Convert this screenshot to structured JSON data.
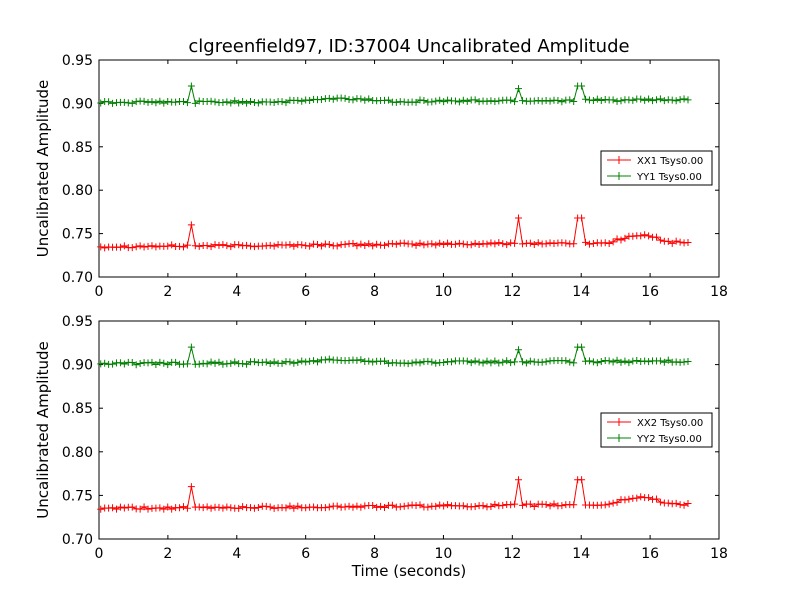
{
  "chart_data": [
    {
      "type": "line",
      "title": "clgreenfield97, ID:37004 Uncalibrated Amplitude",
      "xlabel": "",
      "ylabel": "Uncalibrated Amplitude",
      "xlim": [
        0,
        18
      ],
      "ylim": [
        0.7,
        0.95
      ],
      "xticks": [
        "0",
        "2",
        "4",
        "6",
        "8",
        "10",
        "12",
        "14",
        "16",
        "18"
      ],
      "yticks": [
        "0.70",
        "0.75",
        "0.80",
        "0.85",
        "0.90",
        "0.95"
      ],
      "grid": false,
      "legend_position": "right",
      "series": [
        {
          "name": "XX1 Tsys0.00",
          "color": "#ff0000",
          "base": 0.735,
          "end": 0.74,
          "bump": [
            14.8,
            16.6,
            0.008
          ],
          "spikes": [
            [
              2.7,
              0.76
            ],
            [
              12.15,
              0.768
            ],
            [
              13.95,
              0.768
            ]
          ]
        },
        {
          "name": "YY1 Tsys0.00",
          "color": "#008000",
          "base": 0.901,
          "end": 0.904,
          "bump": [
            5.5,
            8.5,
            0.003
          ],
          "spikes": [
            [
              2.7,
              0.92
            ],
            [
              12.15,
              0.917
            ],
            [
              13.95,
              0.92
            ]
          ]
        }
      ],
      "x_range": [
        0.05,
        17.1
      ]
    },
    {
      "type": "line",
      "title": "",
      "xlabel": "Time (seconds)",
      "ylabel": "Uncalibrated Amplitude",
      "xlim": [
        0,
        18
      ],
      "ylim": [
        0.7,
        0.95
      ],
      "xticks": [
        "0",
        "2",
        "4",
        "6",
        "8",
        "10",
        "12",
        "14",
        "16",
        "18"
      ],
      "yticks": [
        "0.70",
        "0.75",
        "0.80",
        "0.85",
        "0.90",
        "0.95"
      ],
      "grid": false,
      "legend_position": "right",
      "series": [
        {
          "name": "XX2 Tsys0.00",
          "color": "#ff0000",
          "base": 0.735,
          "end": 0.74,
          "bump": [
            14.8,
            16.6,
            0.008
          ],
          "spikes": [
            [
              2.7,
              0.76
            ],
            [
              12.15,
              0.768
            ],
            [
              13.95,
              0.768
            ]
          ]
        },
        {
          "name": "YY2 Tsys0.00",
          "color": "#008000",
          "base": 0.901,
          "end": 0.904,
          "bump": [
            5.5,
            8.5,
            0.003
          ],
          "spikes": [
            [
              2.7,
              0.92
            ],
            [
              12.15,
              0.917
            ],
            [
              13.95,
              0.92
            ]
          ]
        }
      ],
      "x_range": [
        0.05,
        17.1
      ]
    }
  ]
}
